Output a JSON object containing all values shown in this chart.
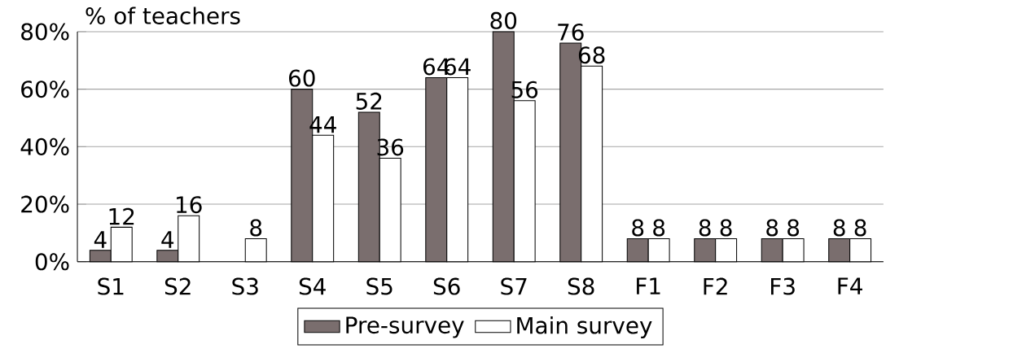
{
  "chart_data": {
    "type": "bar",
    "ylabel": "% of teachers",
    "categories": [
      "S1",
      "S2",
      "S3",
      "S4",
      "S5",
      "S6",
      "S7",
      "S8",
      "F1",
      "F2",
      "F3",
      "F4"
    ],
    "series": [
      {
        "name": "Pre-survey",
        "color": "#7a6e6e",
        "values": [
          4,
          4,
          null,
          60,
          52,
          64,
          80,
          76,
          8,
          8,
          8,
          8
        ]
      },
      {
        "name": "Main survey",
        "color": "#ffffff",
        "values": [
          12,
          16,
          8,
          44,
          36,
          64,
          56,
          68,
          8,
          8,
          8,
          8
        ]
      }
    ],
    "ylim": [
      0,
      80
    ],
    "yticks": [
      {
        "value": 0,
        "label": "0%"
      },
      {
        "value": 20,
        "label": "20%"
      },
      {
        "value": 40,
        "label": "40%"
      },
      {
        "value": 60,
        "label": "60%"
      },
      {
        "value": 80,
        "label": "80%"
      }
    ],
    "grid": "y",
    "legend": "bottom",
    "data_labels": true
  }
}
